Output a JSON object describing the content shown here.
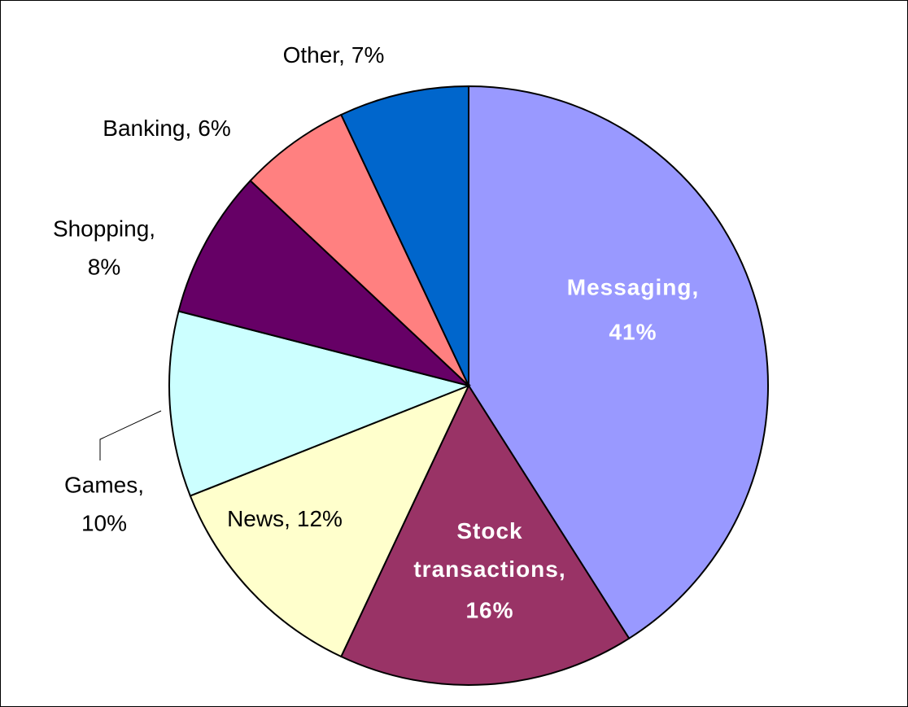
{
  "chart_data": {
    "type": "pie",
    "categories": [
      "Messaging,",
      "Stock transactions,",
      "News,",
      "Games,",
      "Shopping,",
      "Banking,",
      "Other,"
    ],
    "values": [
      41,
      16,
      12,
      10,
      8,
      6,
      7
    ],
    "value_labels": [
      "41%",
      "16%",
      "12%",
      "10%",
      "8%",
      "6%",
      "7%"
    ],
    "colors": [
      "#9999ff",
      "#993366",
      "#ffffcc",
      "#ccffff",
      "#660066",
      "#ff8080",
      "#0066cc"
    ]
  }
}
